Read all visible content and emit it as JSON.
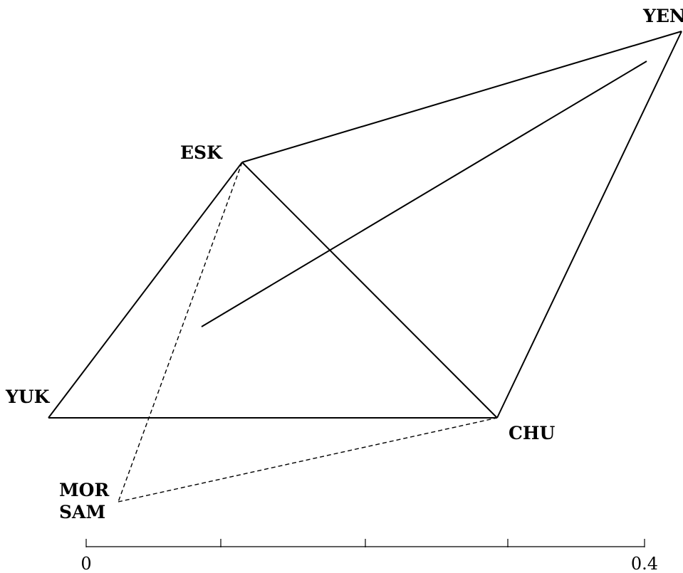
{
  "nodes": {
    "yen": "YEN",
    "esk": "ESK",
    "yuk": "YUK",
    "chu": "CHU",
    "mor": "MOR",
    "sam": "SAM"
  },
  "edges": [
    {
      "from": "YUK",
      "to": "ESK",
      "style": "solid"
    },
    {
      "from": "ESK",
      "to": "YEN",
      "style": "solid"
    },
    {
      "from": "YEN",
      "to": "CHU",
      "style": "solid"
    },
    {
      "from": "CHU",
      "to": "YUK",
      "style": "solid"
    },
    {
      "from": "ESK",
      "to": "CHU",
      "style": "solid"
    },
    {
      "from": "ESK",
      "to": "MOR/SAM",
      "style": "dashed"
    },
    {
      "from": "MOR/SAM",
      "to": "CHU",
      "style": "dashed"
    }
  ],
  "scale_bar": {
    "start_label": "0",
    "end_label": "0.4"
  }
}
